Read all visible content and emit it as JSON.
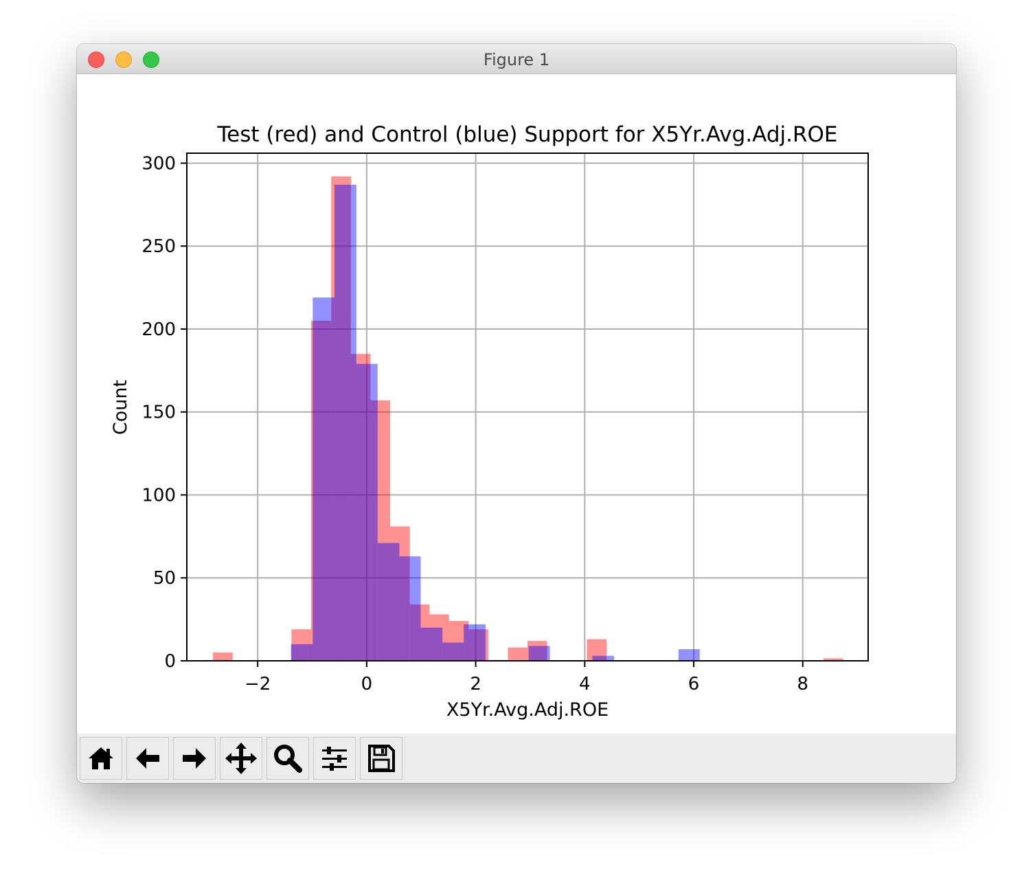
{
  "window": {
    "title": "Figure 1"
  },
  "toolbar": {
    "buttons": [
      {
        "name": "home-icon"
      },
      {
        "name": "back-arrow-icon"
      },
      {
        "name": "forward-arrow-icon"
      },
      {
        "name": "pan-icon"
      },
      {
        "name": "zoom-icon"
      },
      {
        "name": "configure-subplots-icon"
      },
      {
        "name": "save-icon"
      }
    ]
  },
  "chart_data": {
    "type": "bar",
    "title": "Test (red) and Control (blue) Support for X5Yr.Avg.Adj.ROE",
    "xlabel": "X5Yr.Avg.Adj.ROE",
    "ylabel": "Count",
    "xlim": [
      -3.3,
      9.2
    ],
    "ylim": [
      0,
      306
    ],
    "xticks": [
      -2,
      0,
      2,
      4,
      6,
      8
    ],
    "xtick_labels": [
      "−2",
      "0",
      "2",
      "4",
      "6",
      "8"
    ],
    "yticks": [
      0,
      50,
      100,
      150,
      200,
      250,
      300
    ],
    "ytick_labels": [
      "0",
      "50",
      "100",
      "150",
      "200",
      "250",
      "300"
    ],
    "grid": true,
    "colors": {
      "red": "#ff0000",
      "blue": "#0000ff",
      "alpha": 0.43
    },
    "series": [
      {
        "color": "red",
        "bins": [
          [
            -2.82,
            -2.46,
            5
          ],
          [
            -2.46,
            -2.1,
            0
          ],
          [
            -2.1,
            -1.74,
            0
          ],
          [
            -1.74,
            -1.38,
            0
          ],
          [
            -1.38,
            -1.02,
            19
          ],
          [
            -1.02,
            -0.65,
            205
          ],
          [
            -0.65,
            -0.29,
            292
          ],
          [
            -0.29,
            0.07,
            185
          ],
          [
            0.07,
            0.43,
            157
          ],
          [
            0.43,
            0.79,
            81
          ],
          [
            0.79,
            1.15,
            34
          ],
          [
            1.15,
            1.51,
            28
          ],
          [
            1.51,
            1.87,
            24
          ],
          [
            1.87,
            2.23,
            19
          ],
          [
            2.23,
            2.59,
            0
          ],
          [
            2.59,
            2.95,
            8
          ],
          [
            2.95,
            3.31,
            12
          ],
          [
            3.31,
            3.67,
            0
          ],
          [
            3.67,
            4.04,
            0
          ],
          [
            4.04,
            4.4,
            13
          ],
          [
            8.38,
            8.74,
            1.5
          ]
        ]
      },
      {
        "color": "blue",
        "bins": [
          [
            -2.95,
            -2.55,
            0.5
          ],
          [
            -1.39,
            -0.99,
            10
          ],
          [
            -0.99,
            -0.59,
            219
          ],
          [
            -0.59,
            -0.19,
            287
          ],
          [
            -0.19,
            0.2,
            179
          ],
          [
            0.2,
            0.6,
            71
          ],
          [
            0.6,
            0.99,
            63
          ],
          [
            0.99,
            1.39,
            20
          ],
          [
            1.39,
            1.78,
            11
          ],
          [
            1.78,
            2.18,
            22
          ],
          [
            2.18,
            2.57,
            0.5
          ],
          [
            2.97,
            3.36,
            9
          ],
          [
            3.75,
            4.14,
            0
          ],
          [
            4.14,
            4.54,
            3
          ],
          [
            5.72,
            6.11,
            7
          ]
        ]
      }
    ]
  }
}
